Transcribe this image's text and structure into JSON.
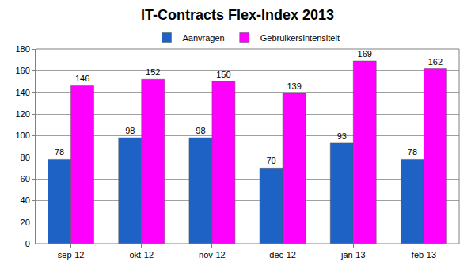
{
  "chart_data": {
    "type": "bar",
    "title": "IT-Contracts Flex-Index 2013",
    "categories": [
      "sep-12",
      "okt-12",
      "nov-12",
      "dec-12",
      "jan-13",
      "feb-13"
    ],
    "series": [
      {
        "name": "Aanvragen",
        "color": "#1f62c6",
        "values": [
          78,
          98,
          98,
          70,
          93,
          78
        ]
      },
      {
        "name": "Gebruikersintensiteit",
        "color": "#ff00ff",
        "values": [
          146,
          152,
          150,
          139,
          169,
          162
        ]
      }
    ],
    "ylim": [
      0,
      180
    ],
    "yticks": [
      0,
      20,
      40,
      60,
      80,
      100,
      120,
      140,
      160,
      180
    ],
    "grid": true,
    "legend": "top",
    "data_labels": true
  }
}
